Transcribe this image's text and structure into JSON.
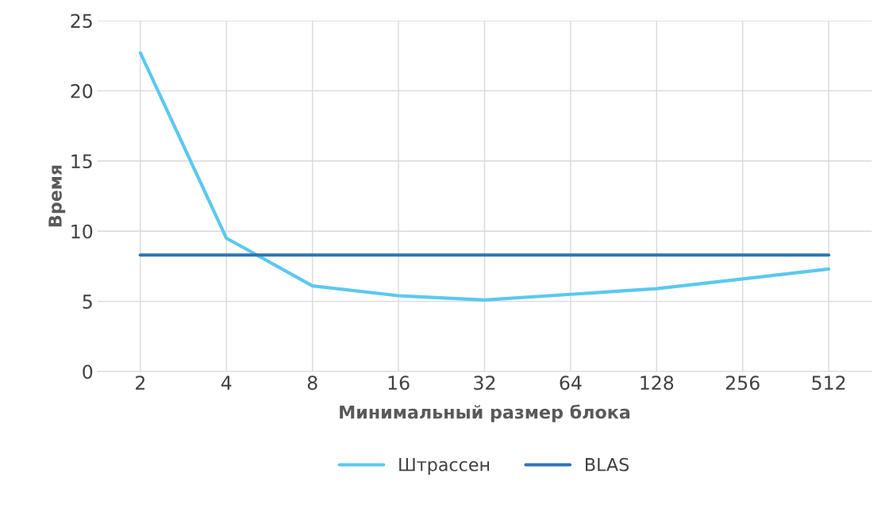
{
  "chart_data": {
    "type": "line",
    "xlabel": "Минимальный размер блока",
    "ylabel": "Время",
    "categories": [
      "2",
      "4",
      "8",
      "16",
      "32",
      "64",
      "128",
      "256",
      "512"
    ],
    "series": [
      {
        "name": "Штрассен",
        "color": "#5bc8f0",
        "values": [
          22.7,
          9.5,
          6.1,
          5.4,
          5.1,
          5.5,
          5.9,
          6.6,
          7.3
        ]
      },
      {
        "name": "BLAS",
        "color": "#2e75b6",
        "values": [
          8.3,
          8.3,
          8.3,
          8.3,
          8.3,
          8.3,
          8.3,
          8.3,
          8.3
        ]
      }
    ],
    "ylim": [
      0,
      25
    ],
    "yticks": [
      0,
      5,
      10,
      15,
      20,
      25
    ],
    "grid": true,
    "legend": "bottom",
    "marker": "none",
    "line_style": "solid"
  }
}
